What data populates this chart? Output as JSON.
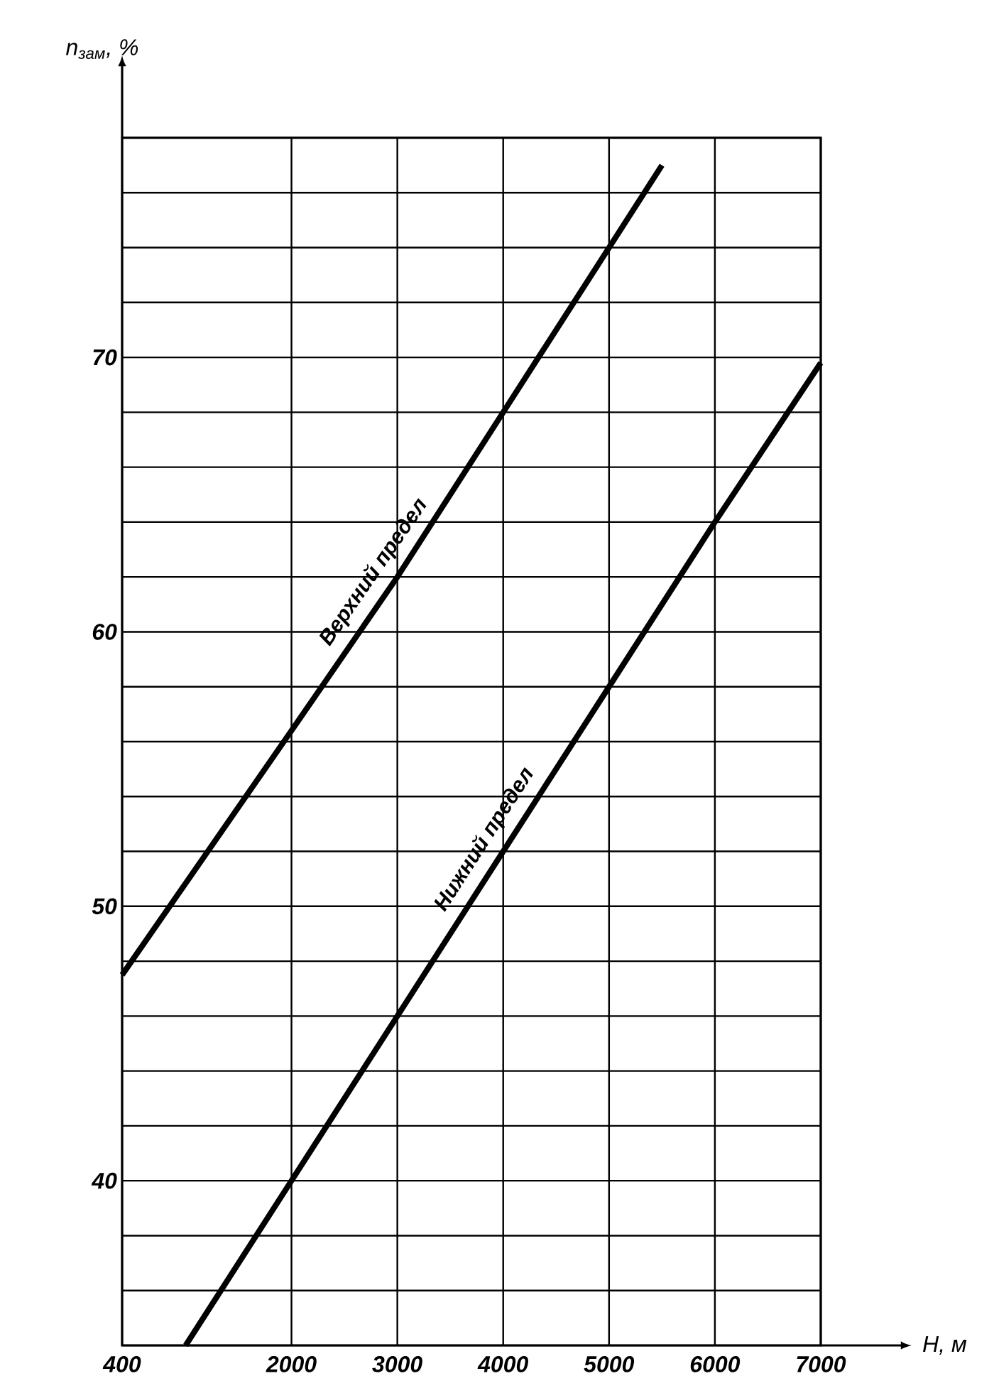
{
  "chart_data": {
    "type": "line",
    "xlabel": "H, м",
    "ylabel": "n$_{зам}$, %",
    "xlim": [
      400,
      7000
    ],
    "ylim": [
      34,
      78
    ],
    "xticks": [
      400,
      2000,
      3000,
      4000,
      5000,
      6000,
      7000
    ],
    "yticks": [
      {
        "value": 34,
        "label": null
      },
      {
        "value": 36,
        "label": null
      },
      {
        "value": 38,
        "label": null
      },
      40,
      {
        "value": 42,
        "label": null
      },
      {
        "value": 44,
        "label": null
      },
      {
        "value": 46,
        "label": null
      },
      {
        "value": 48,
        "label": null
      },
      50,
      {
        "value": 52,
        "label": null
      },
      {
        "value": 54,
        "label": null
      },
      {
        "value": 56,
        "label": null
      },
      {
        "value": 58,
        "label": null
      },
      60,
      {
        "value": 62,
        "label": null
      },
      {
        "value": 64,
        "label": null
      },
      {
        "value": 66,
        "label": null
      },
      {
        "value": 68,
        "label": null
      },
      70,
      {
        "value": 72,
        "label": null
      },
      {
        "value": 74,
        "label": null
      },
      {
        "value": 76,
        "label": null
      },
      {
        "value": 78,
        "label": null
      }
    ],
    "grid": true,
    "legend": false,
    "marker": "none",
    "line_style": "solid",
    "series": [
      {
        "name": "Верхний предел",
        "color": "#000000",
        "x": [
          400,
          2000,
          3000,
          4000,
          5000,
          5500
        ],
        "values": [
          47.5,
          56.4,
          62,
          68,
          74,
          77
        ]
      },
      {
        "name": "Нижний предел",
        "color": "#000000",
        "x": [
          1000,
          2000,
          3000,
          4000,
          5000,
          6000,
          7000
        ],
        "values": [
          34,
          40,
          46,
          52,
          58,
          64,
          69.8
        ]
      }
    ]
  }
}
